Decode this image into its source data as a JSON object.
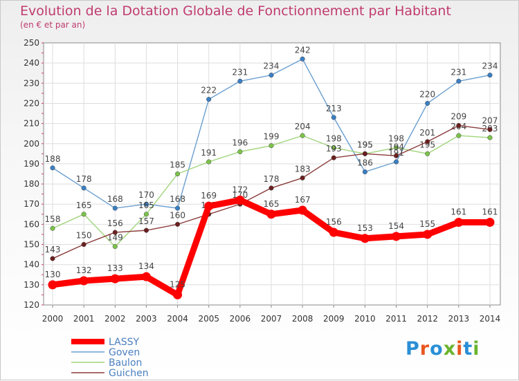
{
  "title": "Evolution de la Dotation Globale de Fonctionnement par Habitant",
  "subtitle": "(en € et par an)",
  "logo_text": "Proxiti",
  "logo_colors": [
    "#2a8fd6",
    "#e8571f",
    "#2a8fd6",
    "#6ab42d",
    "#e8571f",
    "#2a8fd6",
    "#6ab42d"
  ],
  "chart_data": {
    "type": "line",
    "title": "Evolution de la Dotation Globale de Fonctionnement par Habitant",
    "subtitle": "(en € et par an)",
    "xlabel": "",
    "ylabel": "",
    "ylim": [
      120,
      250
    ],
    "yticks": [
      120,
      130,
      140,
      150,
      160,
      170,
      180,
      190,
      200,
      210,
      220,
      230,
      240,
      250
    ],
    "grid": true,
    "legend_position": "bottom-left",
    "categories": [
      "2000",
      "2001",
      "2002",
      "2003",
      "2004",
      "2005",
      "2006",
      "2007",
      "2008",
      "2009",
      "2010",
      "2011",
      "2012",
      "2013",
      "2014"
    ],
    "series": [
      {
        "name": "Goven",
        "color": "#6a9fd0",
        "marker": "#3a7fc4",
        "values": [
          188,
          178,
          168,
          170,
          168,
          222,
          231,
          234,
          242,
          213,
          186,
          191,
          220,
          231,
          234
        ]
      },
      {
        "name": "Baulon",
        "color": "#9fd47a",
        "marker": "#7cc34a",
        "values": [
          158,
          165,
          149,
          165,
          185,
          191,
          196,
          199,
          204,
          198,
          195,
          198,
          195,
          204,
          203
        ]
      },
      {
        "name": "Guichen",
        "color": "#8a3b3b",
        "marker": "#6b1f1f",
        "values": [
          143,
          150,
          156,
          157,
          160,
          165,
          170,
          178,
          183,
          193,
          195,
          194,
          201,
          209,
          207
        ]
      },
      {
        "name": "LASSY",
        "color": "#ff0000",
        "marker": "#ff0000",
        "values": [
          130,
          132,
          133,
          134,
          125,
          169,
          172,
          165,
          167,
          156,
          153,
          154,
          155,
          161,
          161
        ]
      }
    ]
  }
}
